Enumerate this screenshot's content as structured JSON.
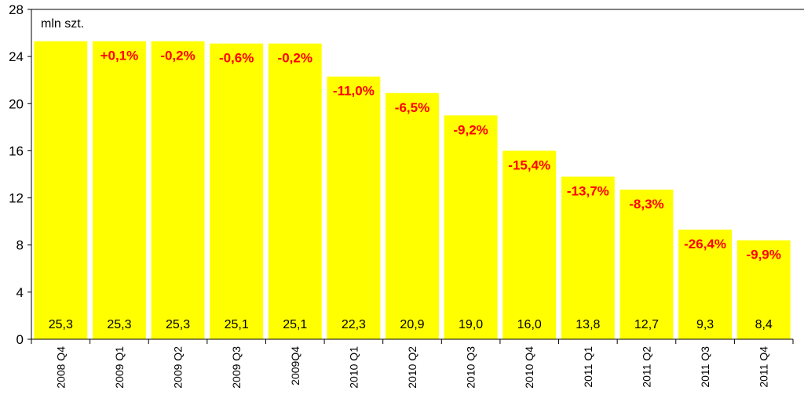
{
  "chart_data": {
    "type": "bar",
    "unit_label": "mln szt.",
    "ylim": [
      0,
      28
    ],
    "yticks": [
      0,
      4,
      8,
      12,
      16,
      20,
      24,
      28
    ],
    "grid": false,
    "bar_color": "#ffff00",
    "pct_color": "#ff0000",
    "categories": [
      "2008 Q4",
      "2009 Q1",
      "2009 Q2",
      "2009 Q3",
      "2009Q4",
      "2010 Q1",
      "2010 Q2",
      "2010 Q3",
      "2010 Q4",
      "2011 Q1",
      "2011 Q2",
      "2011 Q3",
      "2011 Q4"
    ],
    "values": [
      25.3,
      25.3,
      25.3,
      25.1,
      25.1,
      22.3,
      20.9,
      19.0,
      16.0,
      13.8,
      12.7,
      9.3,
      8.4
    ],
    "value_labels": [
      "25,3",
      "25,3",
      "25,3",
      "25,1",
      "25,1",
      "22,3",
      "20,9",
      "19,0",
      "16,0",
      "13,8",
      "12,7",
      "9,3",
      "8,4"
    ],
    "change_labels": [
      "",
      "+0,1%",
      "-0,2%",
      "-0,6%",
      "-0,2%",
      "-11,0%",
      "-6,5%",
      "-9,2%",
      "-15,4%",
      "-13,7%",
      "-8,3%",
      "-26,4%",
      "-9,9%"
    ]
  }
}
